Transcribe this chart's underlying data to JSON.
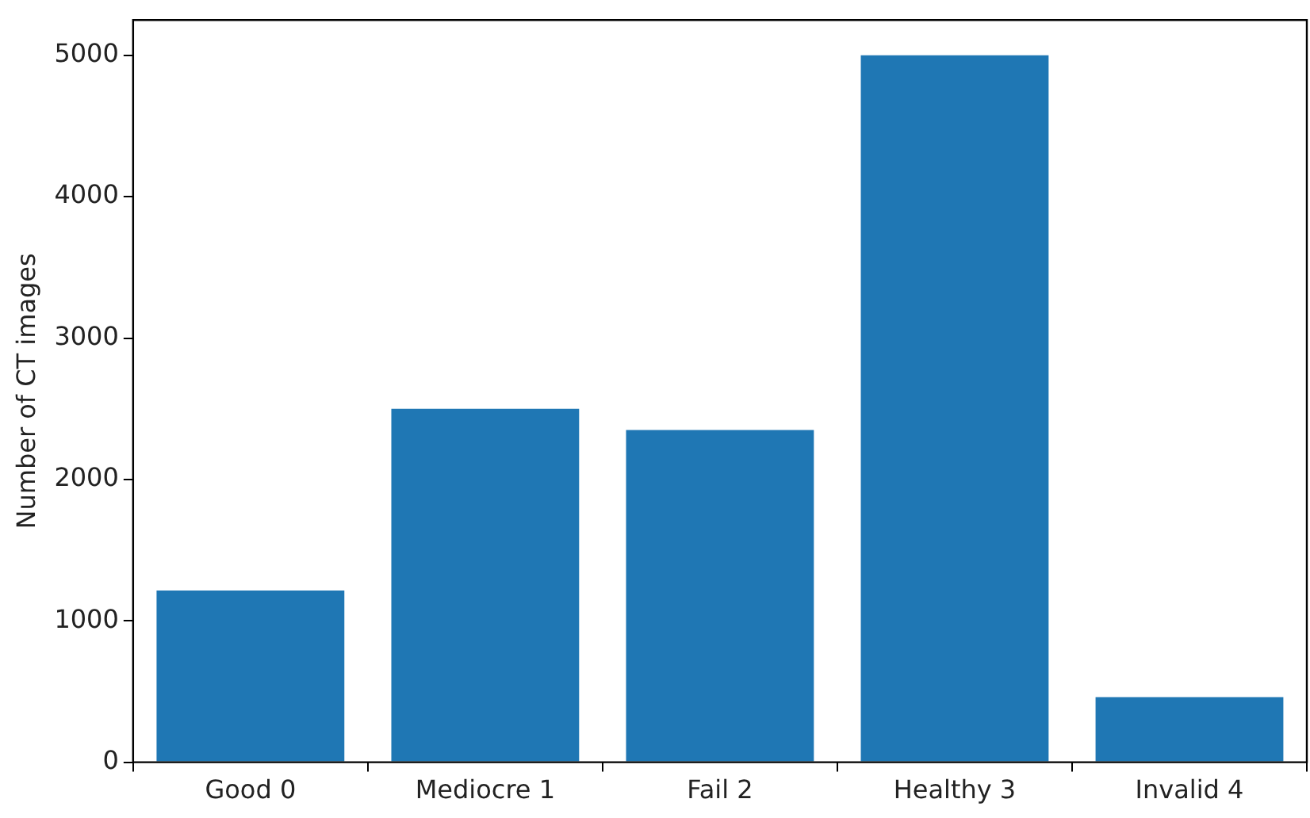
{
  "chart_data": {
    "type": "bar",
    "ylabel": "Number of CT images",
    "categories": [
      "Good 0",
      "Mediocre 1",
      "Fail 2",
      "Healthy 3",
      "Invalid 4"
    ],
    "values": [
      1215,
      2500,
      2350,
      5000,
      460
    ],
    "color": "#1f77b4",
    "ylim": [
      0,
      5250
    ],
    "yticks": [
      0,
      1000,
      2000,
      3000,
      4000,
      5000
    ],
    "grid": false,
    "legend": false
  }
}
